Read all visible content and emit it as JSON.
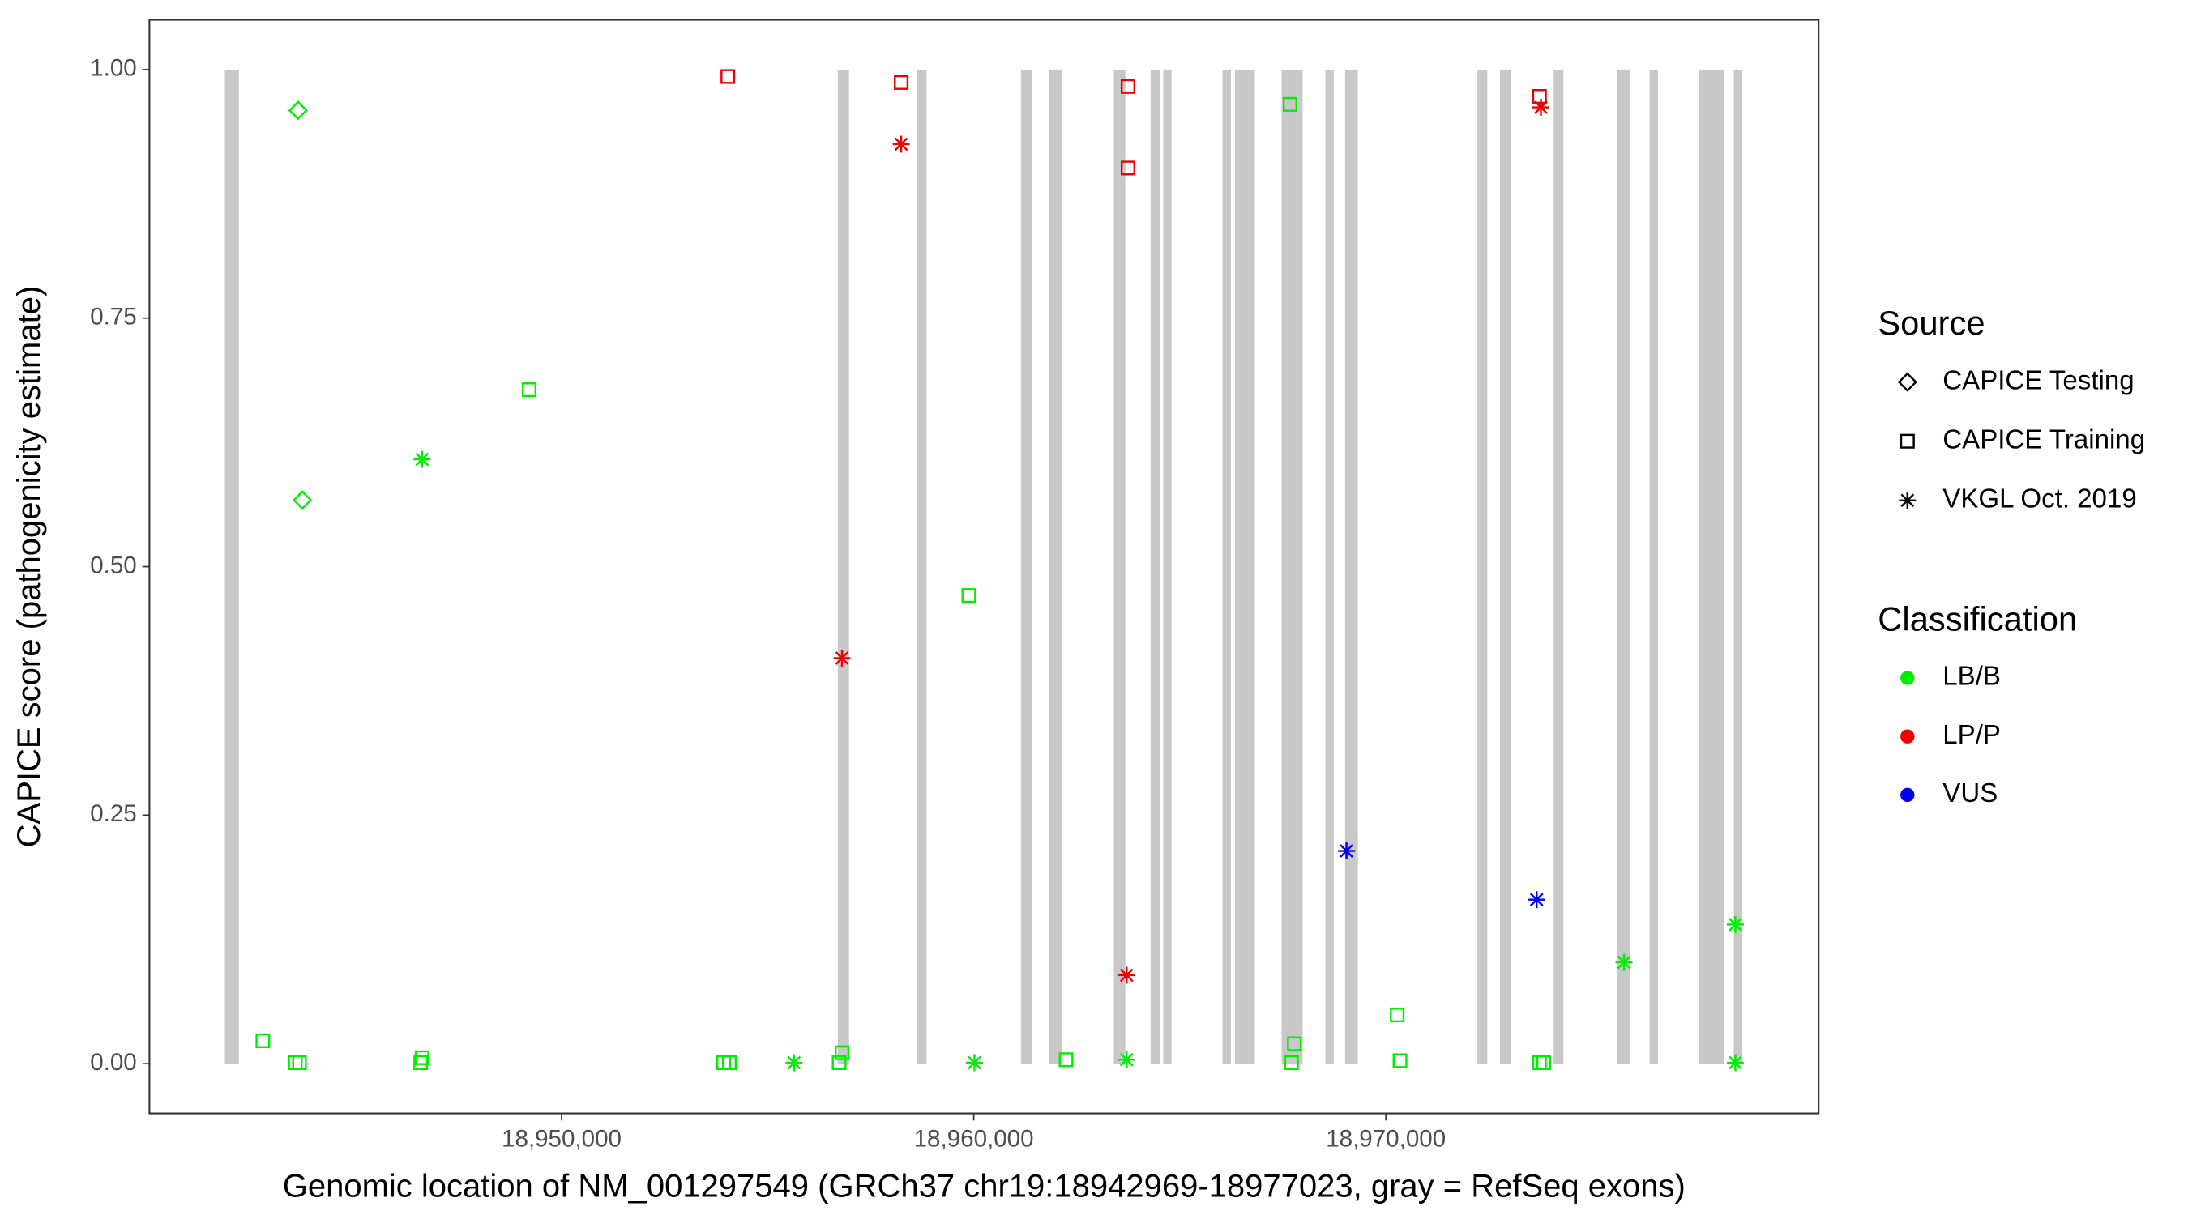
{
  "chart_data": {
    "type": "scatter",
    "x_label": "Genomic location of NM_001297549 (GRCh37 chr19:18942969-18977023, gray = RefSeq exons)",
    "y_label": "CAPICE score (pathogenicity estimate)",
    "xlim": [
      18940000,
      18980500
    ],
    "ylim": [
      -0.05,
      1.05
    ],
    "xticks": [
      {
        "value": 18950000,
        "label": "18,950,000"
      },
      {
        "value": 18960000,
        "label": "18,960,000"
      },
      {
        "value": 18970000,
        "label": "18,970,000"
      }
    ],
    "yticks": [
      {
        "value": 0,
        "label": "0.00"
      },
      {
        "value": 0.25,
        "label": "0.25"
      },
      {
        "value": 0.5,
        "label": "0.50"
      },
      {
        "value": 0.75,
        "label": "0.75"
      },
      {
        "value": 1,
        "label": "1.00"
      }
    ],
    "exon_color": "#c8c8c8",
    "exons": [
      {
        "start": 18941830,
        "end": 18942170
      },
      {
        "start": 18956700,
        "end": 18956975
      },
      {
        "start": 18958616,
        "end": 18958855
      },
      {
        "start": 18961146,
        "end": 18961420
      },
      {
        "start": 18961830,
        "end": 18962140
      },
      {
        "start": 18963400,
        "end": 18963680
      },
      {
        "start": 18964290,
        "end": 18964530
      },
      {
        "start": 18964600,
        "end": 18964800
      },
      {
        "start": 18966035,
        "end": 18966240
      },
      {
        "start": 18966340,
        "end": 18966820
      },
      {
        "start": 18967470,
        "end": 18967980
      },
      {
        "start": 18968530,
        "end": 18968735
      },
      {
        "start": 18969010,
        "end": 18969320
      },
      {
        "start": 18972220,
        "end": 18972460
      },
      {
        "start": 18972770,
        "end": 18973040
      },
      {
        "start": 18974070,
        "end": 18974310
      },
      {
        "start": 18975610,
        "end": 18975920
      },
      {
        "start": 18976400,
        "end": 18976600
      },
      {
        "start": 18977590,
        "end": 18978205
      },
      {
        "start": 18978440,
        "end": 18978650
      }
    ],
    "shape_legend": {
      "title": "Source",
      "items": [
        {
          "label": "CAPICE Testing",
          "shape": "diamond"
        },
        {
          "label": "CAPICE Training",
          "shape": "square"
        },
        {
          "label": "VKGL Oct. 2019",
          "shape": "asterisk"
        }
      ]
    },
    "color_legend": {
      "title": "Classification",
      "items": [
        {
          "label": "LB/B",
          "color": "#00ee00"
        },
        {
          "label": "LP/P",
          "color": "#ee0000"
        },
        {
          "label": "VUS",
          "color": "#0000ee"
        }
      ]
    },
    "series": [
      {
        "source": 0,
        "classification": 0,
        "x": [
          18943606,
          18943709
        ],
        "y": [
          0.959,
          0.567
        ]
      },
      {
        "source": 1,
        "classification": 0,
        "x": [
          18942752,
          18943538,
          18943641,
          18946581,
          18946615,
          18949214,
          18953932,
          18954069,
          18956735,
          18956804,
          18959881,
          18962240,
          18967676,
          18967710,
          18967779,
          18970275,
          18970343,
          18973727,
          18973830
        ],
        "y": [
          0.023,
          0.001,
          0.001,
          0.001,
          0.006,
          0.678,
          0.001,
          0.001,
          0.001,
          0.011,
          0.471,
          0.004,
          0.965,
          0.001,
          0.02,
          0.049,
          0.003,
          0.001,
          0.001
        ]
      },
      {
        "source": 1,
        "classification": 1,
        "x": [
          18954034,
          18958240,
          18963744,
          18963744,
          18973727
        ],
        "y": [
          0.993,
          0.987,
          0.983,
          0.901,
          0.973
        ]
      },
      {
        "source": 2,
        "classification": 0,
        "x": [
          18946615,
          18955641,
          18960018,
          18963710,
          18975779,
          18978480,
          18978480
        ],
        "y": [
          0.608,
          0.001,
          0.001,
          0.004,
          0.102,
          0.14,
          0.001
        ]
      },
      {
        "source": 2,
        "classification": 1,
        "x": [
          18958240,
          18956804,
          18963710,
          18973762
        ],
        "y": [
          0.925,
          0.408,
          0.089,
          0.962
        ]
      },
      {
        "source": 2,
        "classification": 2,
        "x": [
          18969044,
          18973659
        ],
        "y": [
          0.214,
          0.165
        ]
      }
    ]
  }
}
